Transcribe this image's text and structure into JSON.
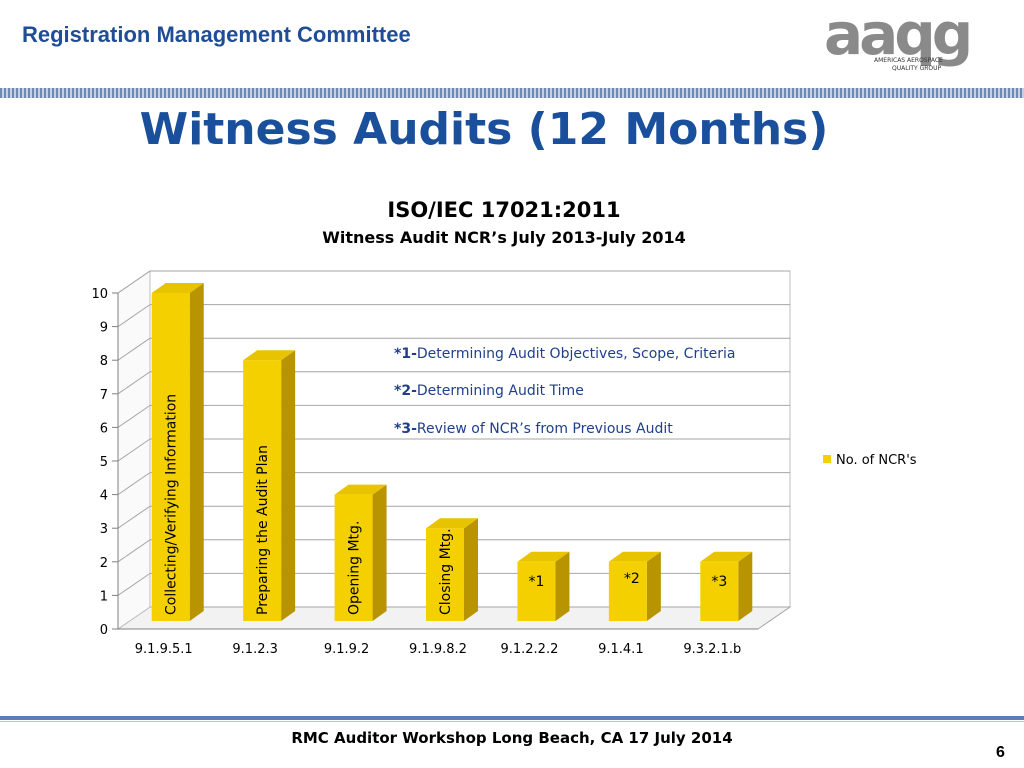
{
  "header": {
    "org_name": "Registration Management Committee",
    "logo_letters": "aaqg",
    "logo_caption_1": "AMERICAS AEROSPACE",
    "logo_caption_2": "QUALITY GROUP"
  },
  "slide": {
    "title": "Witness Audits (12 Months)",
    "footer": "RMC Auditor Workshop Long Beach, CA 17 July 2014",
    "page_number": "6"
  },
  "colors": {
    "accent": "#1a4f9c",
    "bar": "#f5d000",
    "bar_dark": "#b89400",
    "note": "#1f3f8a"
  },
  "chart_data": {
    "type": "bar",
    "title": "ISO/IEC 17021:2011",
    "subtitle": "Witness Audit NCR’s July 2013-July 2014",
    "categories": [
      "9.1.9.5.1",
      "9.1.2.3",
      "9.1.9.2",
      "9.1.9.8.2",
      "9.1.2.2.2",
      "9.1.4.1",
      "9.3.2.1.b"
    ],
    "series": [
      {
        "name": "No. of NCR's",
        "values": [
          10,
          8,
          4,
          3,
          2,
          2,
          2
        ]
      }
    ],
    "bar_labels": [
      "Collecting/Verifying Information",
      "Preparing the Audit Plan",
      "Opening Mtg.",
      "Closing Mtg.",
      "*1",
      "*2",
      "*3"
    ],
    "ylim": [
      0,
      10
    ],
    "yticks": [
      0,
      1,
      2,
      3,
      4,
      5,
      6,
      7,
      8,
      9,
      10
    ],
    "grid": true,
    "legend_position": "right",
    "annotations": [
      {
        "key": "*1-",
        "text": "Determining Audit Objectives, Scope, Criteria"
      },
      {
        "key": "*2-",
        "text": "Determining Audit Time"
      },
      {
        "key": "*3-",
        "text": "Review of NCR’s from Previous Audit"
      }
    ]
  }
}
